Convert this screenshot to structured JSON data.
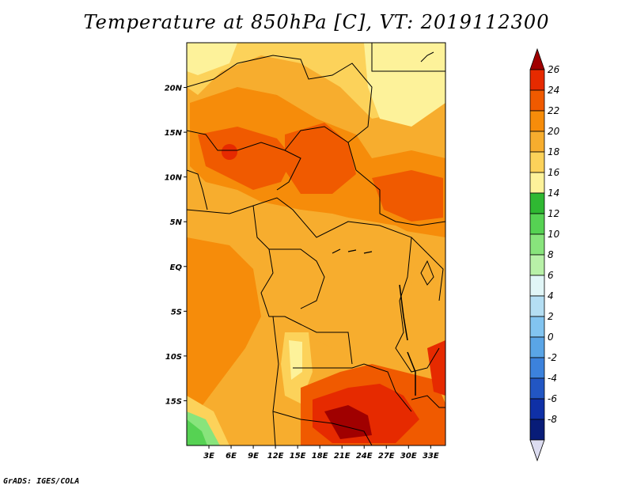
{
  "title": "Temperature at 850hPa [C], VT: 2019112300",
  "credit": "GrADS: IGES/COLA",
  "map": {
    "lat_labels": [
      "20N",
      "15N",
      "10N",
      "5N",
      "EQ",
      "5S",
      "10S",
      "15S"
    ],
    "lat_values": [
      20,
      15,
      10,
      5,
      0,
      -5,
      -10,
      -15
    ],
    "lon_labels": [
      "3E",
      "6E",
      "9E",
      "12E",
      "15E",
      "18E",
      "21E",
      "24E",
      "27E",
      "30E",
      "33E"
    ],
    "lon_values": [
      3,
      6,
      9,
      12,
      15,
      18,
      21,
      24,
      27,
      30,
      33
    ],
    "lon_range": [
      0,
      35
    ],
    "lat_range": [
      -20,
      25
    ]
  },
  "colorbar": {
    "labels": [
      "26",
      "24",
      "22",
      "20",
      "18",
      "16",
      "14",
      "12",
      "10",
      "8",
      "6",
      "4",
      "2",
      "0",
      "-2",
      "-4",
      "-6",
      "-8"
    ],
    "colors": [
      "#a00000",
      "#e62a00",
      "#f05a00",
      "#f68c0a",
      "#f7ad2e",
      "#fcd25a",
      "#fdf29a",
      "#2fb832",
      "#56d253",
      "#88e47c",
      "#b8f1a8",
      "#e1f6f7",
      "#b4def3",
      "#82c4f0",
      "#5aa5e6",
      "#3c82dc",
      "#2256c3",
      "#0f30a6",
      "#081c78",
      "#dcdcf0"
    ]
  }
}
